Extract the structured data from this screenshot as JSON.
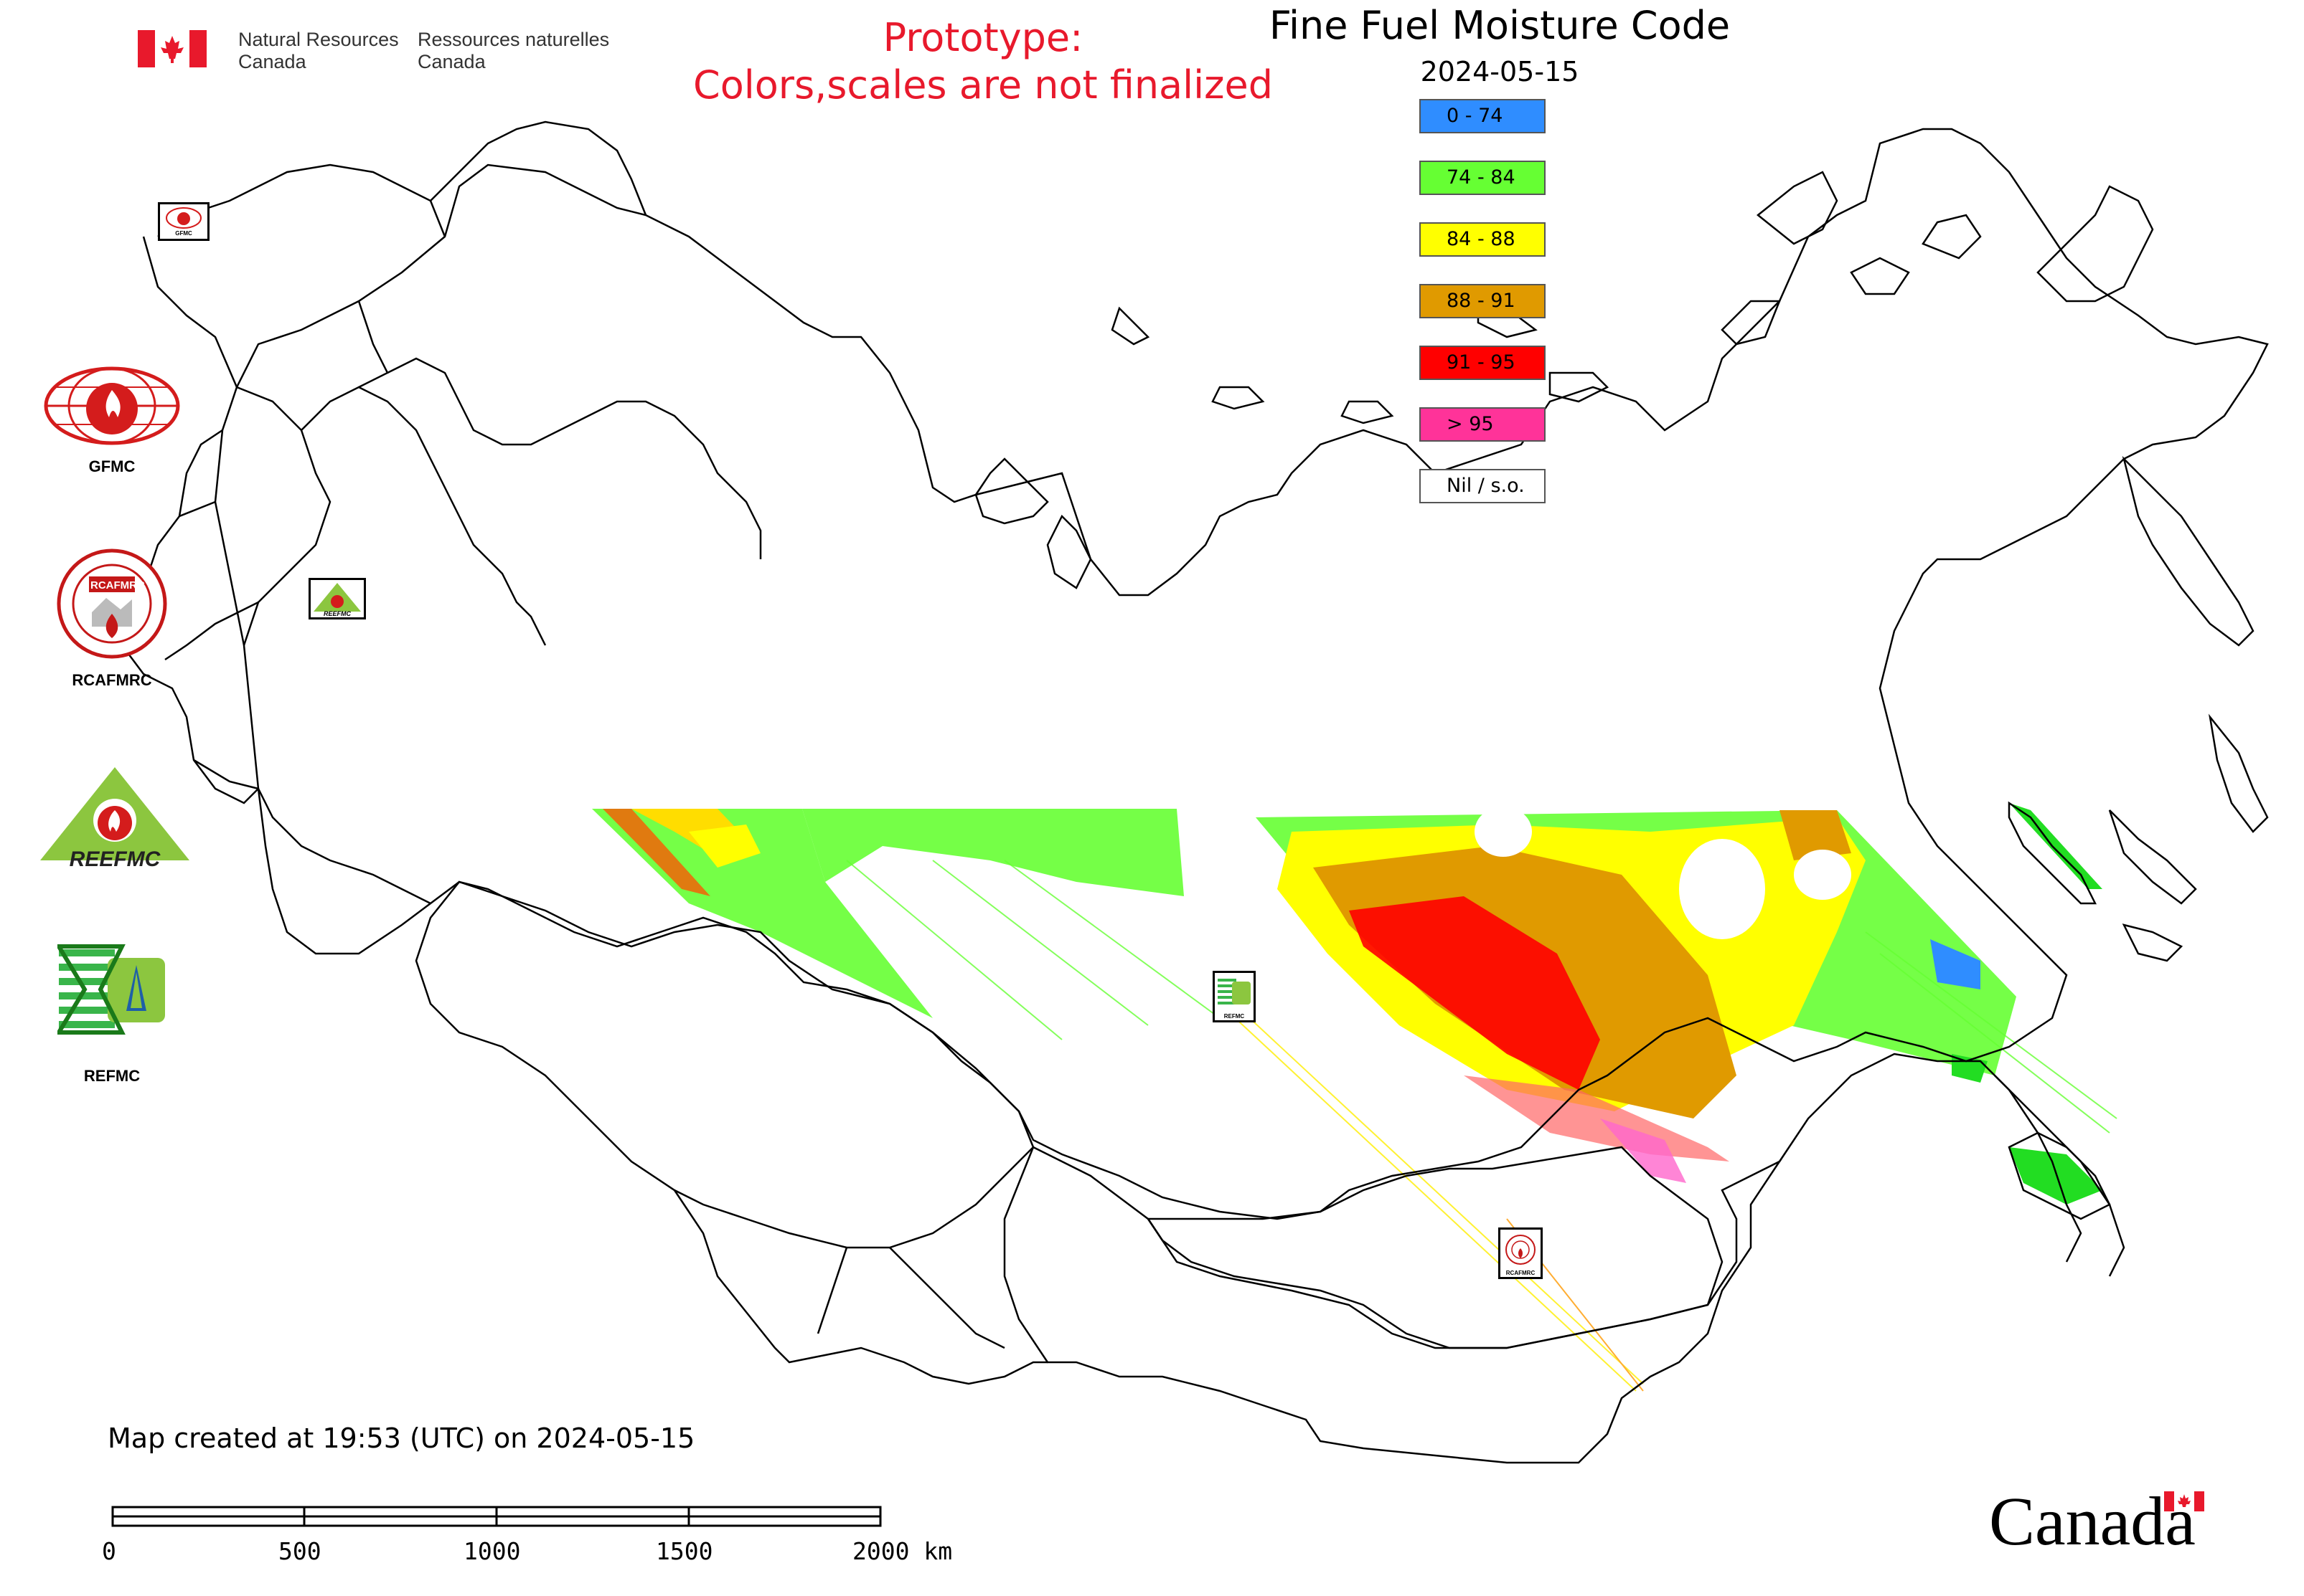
{
  "header": {
    "nrcan_en_line1": "Natural Resources",
    "nrcan_en_line2": "Canada",
    "nrcan_fr_line1": "Ressources naturelles",
    "nrcan_fr_line2": "Canada",
    "prototype_line1": "Prototype:",
    "prototype_line2": "Colors,scales are not finalized"
  },
  "map": {
    "title": "Fine Fuel Moisture Code",
    "date": "2024-05-15"
  },
  "legend": {
    "items": [
      {
        "label": "0 - 74",
        "color": "#2f8dff"
      },
      {
        "label": "74 - 84",
        "color": "#66ff33"
      },
      {
        "label": "84 - 88",
        "color": "#ffff00"
      },
      {
        "label": "88 - 91",
        "color": "#e09a00"
      },
      {
        "label": "91 - 95",
        "color": "#ff0000"
      },
      {
        "label": "> 95",
        "color": "#ff3399"
      },
      {
        "label": "Nil / s.o.",
        "color": "#ffffff"
      }
    ]
  },
  "logos": {
    "gfmc": "GFMC",
    "rcafmrc": "RCAFMRC",
    "reefmc_label": "REFMC",
    "reefmc_logo_text": "REEFMC",
    "map_marker_gfmc": "GFMC",
    "map_marker_refmc": "REFMC",
    "map_marker_rcafmrc": "RCAFMRC"
  },
  "footer": {
    "created": "Map created at 19:53 (UTC) on 2024-05-15",
    "scale_labels": [
      "0",
      "500",
      "1000",
      "1500",
      "2000 km"
    ],
    "wordmark": "Canada"
  }
}
